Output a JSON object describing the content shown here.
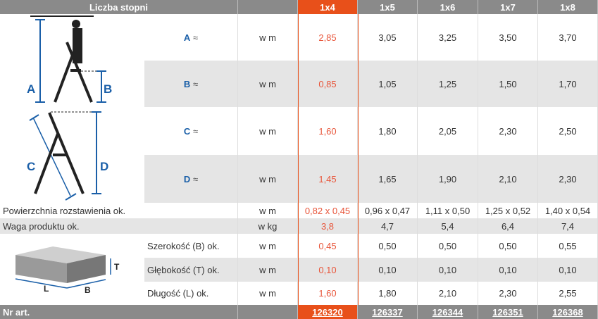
{
  "header": {
    "title": "Liczba stopni",
    "columns": [
      "1x4",
      "1x5",
      "1x6",
      "1x7",
      "1x8"
    ]
  },
  "dimension_rows": [
    {
      "letter": "A",
      "approx": "≈",
      "unit": "w m",
      "values": [
        "2,85",
        "3,05",
        "3,25",
        "3,50",
        "3,70"
      ]
    },
    {
      "letter": "B",
      "approx": "≈",
      "unit": "w m",
      "values": [
        "0,85",
        "1,05",
        "1,25",
        "1,50",
        "1,70"
      ]
    },
    {
      "letter": "C",
      "approx": "≈",
      "unit": "w m",
      "values": [
        "1,60",
        "1,80",
        "2,05",
        "2,30",
        "2,50"
      ]
    },
    {
      "letter": "D",
      "approx": "≈",
      "unit": "w m",
      "values": [
        "1,45",
        "1,65",
        "1,90",
        "2,10",
        "2,30"
      ]
    }
  ],
  "wide_rows": [
    {
      "label": "Powierzchnia rozstawienia ok.",
      "unit": "w m",
      "values": [
        "0,82 x 0,45",
        "0,96 x 0,47",
        "1,11 x 0,50",
        "1,25 x 0,52",
        "1,40 x 0,54"
      ]
    },
    {
      "label": "Waga produktu ok.",
      "unit": "w kg",
      "values": [
        "3,8",
        "4,7",
        "5,4",
        "6,4",
        "7,4"
      ]
    }
  ],
  "package_rows": [
    {
      "label": "Szerokość (B) ok.",
      "unit": "w m",
      "values": [
        "0,45",
        "0,50",
        "0,50",
        "0,50",
        "0,55"
      ]
    },
    {
      "label": "Głębokość (T) ok.",
      "unit": "w m",
      "values": [
        "0,10",
        "0,10",
        "0,10",
        "0,10",
        "0,10"
      ]
    },
    {
      "label": "Długość (L) ok.",
      "unit": "w m",
      "values": [
        "1,60",
        "1,80",
        "2,10",
        "2,30",
        "2,55"
      ]
    }
  ],
  "footer": {
    "label": "Nr art.",
    "articles": [
      "126320",
      "126337",
      "126344",
      "126351",
      "126368"
    ]
  },
  "diagram_labels": {
    "ladder": [
      "A",
      "B",
      "C",
      "D"
    ],
    "box": [
      "T",
      "L",
      "B"
    ]
  },
  "colors": {
    "accent": "#e8501a",
    "header": "#8a8a8a",
    "dimension": "#1a5fa8"
  }
}
